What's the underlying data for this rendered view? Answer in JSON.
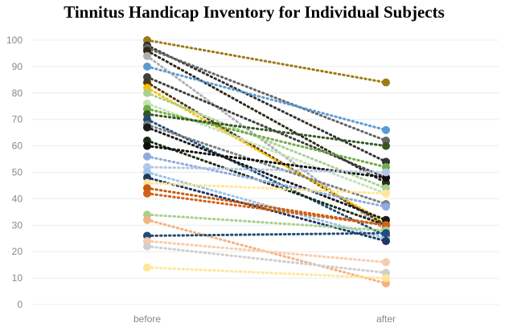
{
  "chart_data": {
    "type": "line",
    "title": "Tinnitus Handicap Inventory for Individual Subjects",
    "xlabel": "",
    "ylabel": "",
    "categories": [
      "before",
      "after"
    ],
    "ylim": [
      0,
      100
    ],
    "yticks": [
      0,
      10,
      20,
      30,
      40,
      50,
      60,
      70,
      80,
      90,
      100
    ],
    "grid": true,
    "legend": "none",
    "series": [
      {
        "values": [
          100,
          84
        ],
        "color": "#9c7a14"
      },
      {
        "values": [
          98,
          54
        ],
        "color": "#333333"
      },
      {
        "values": [
          97,
          62
        ],
        "color": "#666666"
      },
      {
        "values": [
          96,
          46
        ],
        "color": "#2e2a1a"
      },
      {
        "values": [
          94,
          28
        ],
        "color": "#b0b0b0"
      },
      {
        "values": [
          90,
          66
        ],
        "color": "#5b9bd5"
      },
      {
        "values": [
          86,
          48
        ],
        "color": "#3f3f3f"
      },
      {
        "values": [
          84,
          30
        ],
        "color": "#4a3a16"
      },
      {
        "values": [
          82,
          31
        ],
        "color": "#ffc000"
      },
      {
        "values": [
          80,
          44
        ],
        "color": "#a9d18e"
      },
      {
        "values": [
          76,
          42
        ],
        "color": "#c5e0b4"
      },
      {
        "values": [
          74,
          52
        ],
        "color": "#70ad47"
      },
      {
        "values": [
          72,
          60
        ],
        "color": "#375623"
      },
      {
        "values": [
          70,
          26
        ],
        "color": "#1f4e79"
      },
      {
        "values": [
          68,
          38
        ],
        "color": "#7f7f7f"
      },
      {
        "values": [
          67,
          32
        ],
        "color": "#1a1a1a"
      },
      {
        "values": [
          62,
          30
        ],
        "color": "#1c2b14"
      },
      {
        "values": [
          60,
          48
        ],
        "color": "#0f0f0f"
      },
      {
        "values": [
          56,
          37
        ],
        "color": "#8faadc"
      },
      {
        "values": [
          52,
          50
        ],
        "color": "#b4c7e7"
      },
      {
        "values": [
          50,
          25
        ],
        "color": "#9dc3e6"
      },
      {
        "values": [
          48,
          24
        ],
        "color": "#203864"
      },
      {
        "values": [
          46,
          42
        ],
        "color": "#ffe699"
      },
      {
        "values": [
          44,
          30
        ],
        "color": "#c55a11"
      },
      {
        "values": [
          42,
          30
        ],
        "color": "#d26316"
      },
      {
        "values": [
          34,
          28
        ],
        "color": "#a9d18e"
      },
      {
        "values": [
          32,
          8
        ],
        "color": "#f4b183"
      },
      {
        "values": [
          26,
          27
        ],
        "color": "#1f4e79"
      },
      {
        "values": [
          24,
          16
        ],
        "color": "#f8cbad"
      },
      {
        "values": [
          22,
          12
        ],
        "color": "#d0cece"
      },
      {
        "values": [
          14,
          10
        ],
        "color": "#ffe699"
      }
    ]
  }
}
